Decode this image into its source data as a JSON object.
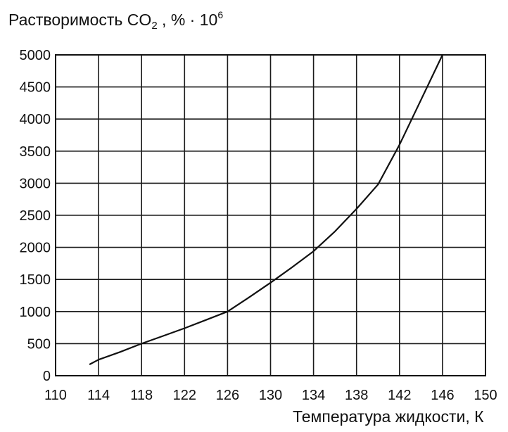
{
  "chart_data": {
    "type": "line",
    "title": "",
    "ylabel": {
      "main": "Растворимость CO",
      "subscript": "2",
      "after_subscript": " , % · 10",
      "superscript": "6"
    },
    "xlabel": "Температура жидкости, К",
    "xlim": [
      110,
      150
    ],
    "ylim": [
      0,
      5000
    ],
    "x_ticks": [
      110,
      114,
      118,
      122,
      126,
      130,
      134,
      138,
      142,
      146,
      150
    ],
    "y_ticks": [
      0,
      500,
      1000,
      1500,
      2000,
      2500,
      3000,
      3500,
      4000,
      4500,
      5000
    ],
    "grid": true,
    "series": [
      {
        "x": [
          113.2,
          114,
          116,
          118,
          120,
          122,
          124,
          126,
          128,
          130,
          132,
          134,
          136,
          138,
          140,
          142,
          144,
          146
        ],
        "y": [
          180,
          250,
          370,
          500,
          620,
          740,
          870,
          1000,
          1220,
          1450,
          1690,
          1940,
          2250,
          2600,
          2980,
          3600,
          4300,
          5000
        ],
        "color": "#111111"
      }
    ]
  }
}
